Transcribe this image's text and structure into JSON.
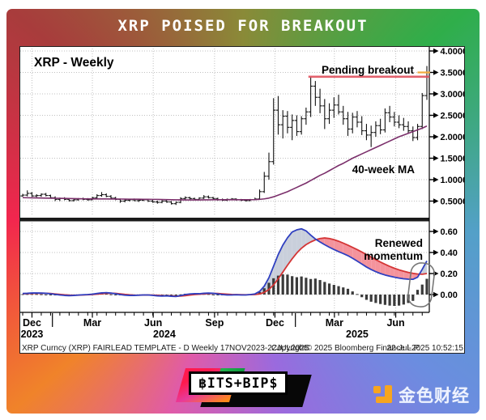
{
  "header": {
    "title": "XRP POISED FOR BREAKOUT"
  },
  "chart": {
    "panel_title": "XRP - Weekly",
    "annotations": {
      "pending_breakout": "Pending breakout",
      "ma_label": "40-week MA",
      "renewed_line1": "Renewed",
      "renewed_line2": "momentum"
    },
    "footer": {
      "left": "XRP Curncy (XRP) FAIRLEAD TEMPLATE - D Weekly 17NOV2023-22JUL2025",
      "center": "Copyright© 2025 Bloomberg Finance L.P.",
      "right": "22-Jul-2025 10:52:15"
    }
  },
  "footer_logos": {
    "bits_bips": "฿ITS+BIP$",
    "golden_finance": "金色财经"
  },
  "colors": {
    "frame_top_left": "#a83c3c",
    "frame_top_right": "#2fae4a",
    "frame_bottom_right": "#6b8de0",
    "frame_bottom_left": "#f0832a",
    "frame_left_mid": "#f2264e",
    "resistance": "#e0515e",
    "last_price_marker": "#f2a93b",
    "ma_line": "#7b2f6b",
    "macd_line": "#2f3fc0",
    "signal_line": "#d43535",
    "fill_macd_above": "#c9cfdb",
    "fill_signal_above": "#f4939c",
    "histogram": "#3a3a3a",
    "grid": "#c0c0c0",
    "gold_icon": "#f7a51f"
  },
  "chart_data": [
    {
      "type": "ohlc",
      "title": "XRP - Weekly",
      "xlim": [
        "17NOV2023",
        "22JUL2025"
      ],
      "weeks": 88,
      "ylim": [
        0.3,
        4.05
      ],
      "ytick_values": [
        4.0,
        3.5,
        3.0,
        2.5,
        2.0,
        1.5,
        1.0,
        0.5
      ],
      "ytick_labels": [
        "4.0000",
        "3.5000",
        "3.0000",
        "2.5000",
        "2.0000",
        "1.5000",
        "1.0000",
        "0.5000"
      ],
      "x_months": [
        {
          "label": "Dec",
          "week": 2
        },
        {
          "label": "Mar",
          "week": 15
        },
        {
          "label": "Jun",
          "week": 28.1
        },
        {
          "label": "Sep",
          "week": 41.3
        },
        {
          "label": "Dec",
          "week": 54.3
        },
        {
          "label": "Mar",
          "week": 67.1
        },
        {
          "label": "Jun",
          "week": 80.3
        }
      ],
      "x_years": [
        {
          "label": "2023",
          "week": 2
        },
        {
          "label": "2024",
          "week": 30.5
        },
        {
          "label": "2025",
          "week": 72
        }
      ],
      "year_separator_weeks": [
        6.4,
        58.7
      ],
      "resistance": {
        "value": 3.4,
        "start_week": 61.5
      },
      "last_price": {
        "value": 3.5
      },
      "ohlc": [
        [
          0.62,
          0.67,
          0.6,
          0.64
        ],
        [
          0.64,
          0.75,
          0.61,
          0.68
        ],
        [
          0.68,
          0.71,
          0.6,
          0.62
        ],
        [
          0.62,
          0.66,
          0.59,
          0.63
        ],
        [
          0.63,
          0.68,
          0.6,
          0.66
        ],
        [
          0.66,
          0.69,
          0.61,
          0.63
        ],
        [
          0.63,
          0.65,
          0.56,
          0.58
        ],
        [
          0.58,
          0.61,
          0.5,
          0.54
        ],
        [
          0.54,
          0.58,
          0.5,
          0.56
        ],
        [
          0.56,
          0.59,
          0.52,
          0.54
        ],
        [
          0.54,
          0.56,
          0.49,
          0.51
        ],
        [
          0.51,
          0.55,
          0.49,
          0.53
        ],
        [
          0.53,
          0.57,
          0.51,
          0.55
        ],
        [
          0.55,
          0.58,
          0.52,
          0.54
        ],
        [
          0.54,
          0.57,
          0.51,
          0.53
        ],
        [
          0.53,
          0.6,
          0.52,
          0.58
        ],
        [
          0.58,
          0.66,
          0.56,
          0.63
        ],
        [
          0.63,
          0.71,
          0.6,
          0.65
        ],
        [
          0.65,
          0.68,
          0.59,
          0.61
        ],
        [
          0.61,
          0.64,
          0.54,
          0.57
        ],
        [
          0.57,
          0.6,
          0.52,
          0.54
        ],
        [
          0.54,
          0.56,
          0.46,
          0.5
        ],
        [
          0.5,
          0.54,
          0.47,
          0.52
        ],
        [
          0.52,
          0.55,
          0.49,
          0.53
        ],
        [
          0.53,
          0.56,
          0.5,
          0.51
        ],
        [
          0.51,
          0.54,
          0.48,
          0.52
        ],
        [
          0.52,
          0.55,
          0.5,
          0.53
        ],
        [
          0.53,
          0.54,
          0.48,
          0.5
        ],
        [
          0.5,
          0.53,
          0.46,
          0.48
        ],
        [
          0.48,
          0.51,
          0.44,
          0.47
        ],
        [
          0.47,
          0.52,
          0.45,
          0.5
        ],
        [
          0.5,
          0.53,
          0.46,
          0.48
        ],
        [
          0.48,
          0.5,
          0.42,
          0.44
        ],
        [
          0.44,
          0.49,
          0.41,
          0.47
        ],
        [
          0.47,
          0.59,
          0.45,
          0.56
        ],
        [
          0.56,
          0.61,
          0.52,
          0.58
        ],
        [
          0.58,
          0.6,
          0.54,
          0.56
        ],
        [
          0.56,
          0.58,
          0.52,
          0.54
        ],
        [
          0.54,
          0.59,
          0.53,
          0.57
        ],
        [
          0.57,
          0.64,
          0.55,
          0.6
        ],
        [
          0.6,
          0.63,
          0.56,
          0.58
        ],
        [
          0.58,
          0.6,
          0.54,
          0.56
        ],
        [
          0.56,
          0.58,
          0.51,
          0.53
        ],
        [
          0.53,
          0.56,
          0.5,
          0.52
        ],
        [
          0.52,
          0.56,
          0.5,
          0.54
        ],
        [
          0.54,
          0.57,
          0.52,
          0.55
        ],
        [
          0.55,
          0.56,
          0.51,
          0.53
        ],
        [
          0.53,
          0.55,
          0.5,
          0.52
        ],
        [
          0.52,
          0.54,
          0.49,
          0.51
        ],
        [
          0.51,
          0.55,
          0.5,
          0.53
        ],
        [
          0.53,
          0.58,
          0.52,
          0.55
        ],
        [
          0.55,
          0.77,
          0.54,
          0.72
        ],
        [
          0.72,
          1.18,
          0.69,
          1.08
        ],
        [
          1.08,
          1.63,
          1.0,
          1.42
        ],
        [
          1.42,
          2.9,
          1.35,
          2.62
        ],
        [
          2.62,
          2.95,
          2.05,
          2.28
        ],
        [
          2.28,
          2.62,
          1.96,
          2.48
        ],
        [
          2.48,
          2.6,
          2.08,
          2.22
        ],
        [
          2.22,
          2.52,
          1.92,
          2.38
        ],
        [
          2.38,
          2.5,
          2.02,
          2.12
        ],
        [
          2.12,
          2.48,
          2.05,
          2.42
        ],
        [
          2.42,
          2.68,
          2.28,
          2.58
        ],
        [
          2.58,
          3.4,
          2.46,
          3.18
        ],
        [
          3.18,
          3.3,
          2.72,
          2.92
        ],
        [
          2.92,
          3.12,
          2.55,
          2.72
        ],
        [
          2.72,
          2.88,
          2.18,
          2.42
        ],
        [
          2.42,
          2.78,
          2.3,
          2.62
        ],
        [
          2.62,
          2.92,
          2.44,
          2.74
        ],
        [
          2.74,
          2.98,
          2.52,
          2.58
        ],
        [
          2.58,
          2.72,
          2.28,
          2.42
        ],
        [
          2.42,
          2.58,
          2.02,
          2.18
        ],
        [
          2.18,
          2.56,
          2.08,
          2.46
        ],
        [
          2.46,
          2.6,
          2.22,
          2.34
        ],
        [
          2.34,
          2.48,
          2.04,
          2.14
        ],
        [
          2.14,
          2.3,
          1.92,
          2.04
        ],
        [
          2.04,
          2.26,
          1.76,
          2.1
        ],
        [
          2.1,
          2.36,
          2.0,
          2.26
        ],
        [
          2.26,
          2.42,
          2.06,
          2.16
        ],
        [
          2.16,
          2.66,
          2.1,
          2.56
        ],
        [
          2.56,
          2.72,
          2.34,
          2.46
        ],
        [
          2.46,
          2.58,
          2.24,
          2.34
        ],
        [
          2.34,
          2.5,
          2.2,
          2.28
        ],
        [
          2.28,
          2.44,
          2.14,
          2.24
        ],
        [
          2.24,
          2.36,
          2.08,
          2.14
        ],
        [
          2.14,
          2.24,
          1.9,
          1.98
        ],
        [
          1.98,
          2.3,
          1.92,
          2.24
        ],
        [
          2.24,
          3.02,
          2.18,
          2.96
        ],
        [
          2.96,
          3.65,
          2.86,
          3.5
        ]
      ],
      "ma40": [
        0.58,
        0.578,
        0.576,
        0.574,
        0.572,
        0.57,
        0.568,
        0.566,
        0.564,
        0.562,
        0.56,
        0.558,
        0.556,
        0.554,
        0.552,
        0.551,
        0.55,
        0.55,
        0.55,
        0.549,
        0.548,
        0.547,
        0.546,
        0.545,
        0.544,
        0.543,
        0.542,
        0.541,
        0.54,
        0.538,
        0.536,
        0.534,
        0.532,
        0.53,
        0.529,
        0.528,
        0.528,
        0.528,
        0.528,
        0.529,
        0.53,
        0.531,
        0.532,
        0.532,
        0.532,
        0.532,
        0.532,
        0.532,
        0.532,
        0.533,
        0.535,
        0.54,
        0.552,
        0.57,
        0.6,
        0.64,
        0.68,
        0.72,
        0.77,
        0.82,
        0.87,
        0.92,
        0.98,
        1.04,
        1.1,
        1.15,
        1.21,
        1.27,
        1.33,
        1.38,
        1.44,
        1.5,
        1.55,
        1.6,
        1.65,
        1.7,
        1.75,
        1.8,
        1.85,
        1.9,
        1.95,
        2.0,
        2.04,
        2.08,
        2.12,
        2.16,
        2.2,
        2.25
      ]
    },
    {
      "type": "macd",
      "ylim": [
        -0.15,
        0.7
      ],
      "ytick_values": [
        0.6,
        0.4,
        0.2,
        0.0
      ],
      "ytick_labels": [
        "0.60",
        "0.40",
        "0.20",
        "0.00"
      ],
      "highlight_weeks": [
        84,
        87
      ],
      "macd": [
        0.01,
        0.012,
        0.015,
        0.015,
        0.014,
        0.012,
        0.008,
        0.002,
        -0.004,
        -0.008,
        -0.01,
        -0.008,
        -0.005,
        -0.002,
        0.0,
        0.004,
        0.01,
        0.016,
        0.018,
        0.014,
        0.008,
        0.0,
        -0.006,
        -0.008,
        -0.008,
        -0.006,
        -0.004,
        -0.004,
        -0.008,
        -0.012,
        -0.014,
        -0.012,
        -0.016,
        -0.018,
        -0.01,
        0.0,
        0.006,
        0.008,
        0.008,
        0.012,
        0.014,
        0.012,
        0.006,
        0.0,
        -0.004,
        -0.004,
        -0.002,
        -0.004,
        -0.004,
        0.0,
        0.006,
        0.03,
        0.08,
        0.16,
        0.27,
        0.38,
        0.47,
        0.54,
        0.595,
        0.615,
        0.625,
        0.605,
        0.565,
        0.528,
        0.5,
        0.474,
        0.45,
        0.428,
        0.408,
        0.39,
        0.37,
        0.345,
        0.318,
        0.29,
        0.262,
        0.238,
        0.218,
        0.2,
        0.186,
        0.175,
        0.165,
        0.157,
        0.15,
        0.146,
        0.145,
        0.165,
        0.24,
        0.32
      ],
      "signal": [
        0.008,
        0.009,
        0.011,
        0.012,
        0.013,
        0.012,
        0.01,
        0.006,
        0.002,
        -0.002,
        -0.005,
        -0.006,
        -0.006,
        -0.004,
        -0.002,
        0.0,
        0.004,
        0.008,
        0.012,
        0.013,
        0.011,
        0.007,
        0.002,
        -0.002,
        -0.005,
        -0.006,
        -0.005,
        -0.004,
        -0.005,
        -0.007,
        -0.01,
        -0.011,
        -0.013,
        -0.015,
        -0.014,
        -0.01,
        -0.005,
        0.0,
        0.003,
        0.006,
        0.009,
        0.011,
        0.01,
        0.007,
        0.004,
        0.001,
        0.0,
        -0.001,
        -0.002,
        -0.001,
        0.0,
        0.006,
        0.02,
        0.048,
        0.092,
        0.15,
        0.214,
        0.279,
        0.34,
        0.395,
        0.44,
        0.475,
        0.5,
        0.52,
        0.533,
        0.538,
        0.533,
        0.522,
        0.507,
        0.489,
        0.47,
        0.449,
        0.427,
        0.404,
        0.38,
        0.356,
        0.332,
        0.309,
        0.288,
        0.268,
        0.25,
        0.235,
        0.222,
        0.211,
        0.202,
        0.195,
        0.193,
        0.2
      ],
      "hist": [
        0.004,
        0.005,
        0.006,
        0.005,
        0.003,
        0.001,
        -0.002,
        -0.006,
        -0.008,
        -0.008,
        -0.007,
        -0.004,
        -0.001,
        0.001,
        0.002,
        0.004,
        0.007,
        0.009,
        0.007,
        0.002,
        -0.003,
        -0.007,
        -0.008,
        -0.007,
        -0.004,
        -0.001,
        0.0,
        -0.001,
        -0.004,
        -0.006,
        -0.005,
        -0.002,
        -0.004,
        -0.004,
        0.002,
        0.008,
        0.01,
        0.008,
        0.005,
        0.006,
        0.005,
        0.001,
        -0.004,
        -0.007,
        -0.008,
        -0.005,
        -0.002,
        -0.003,
        -0.002,
        0.001,
        0.006,
        0.024,
        0.06,
        0.112,
        0.155,
        0.18,
        0.192,
        0.19,
        0.175,
        0.165,
        0.172,
        0.16,
        0.148,
        0.152,
        0.138,
        0.12,
        0.105,
        0.092,
        0.08,
        0.068,
        0.055,
        0.03,
        0.005,
        -0.025,
        -0.05,
        -0.068,
        -0.08,
        -0.09,
        -0.098,
        -0.105,
        -0.108,
        -0.105,
        -0.095,
        -0.08,
        -0.06,
        0.045,
        0.095,
        0.15
      ]
    }
  ]
}
